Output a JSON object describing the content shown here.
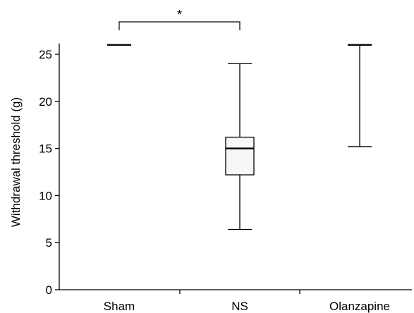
{
  "chart_data": {
    "type": "box",
    "title": "",
    "xlabel": "",
    "ylabel": "Withdrawal threshold (g)",
    "ylim": [
      0,
      26
    ],
    "yticks": [
      0,
      5,
      10,
      15,
      20,
      25
    ],
    "categories": [
      "Sham",
      "NS",
      "Olanzapine"
    ],
    "boxes": [
      {
        "category": "Sham",
        "min": 26,
        "q1": 26,
        "median": 26,
        "q3": 26,
        "max": 26
      },
      {
        "category": "NS",
        "min": 6.4,
        "q1": 12.2,
        "median": 15.0,
        "q3": 16.2,
        "max": 24.0
      },
      {
        "category": "Olanzapine",
        "min": 15.2,
        "q1": 26,
        "median": 26,
        "q3": 26,
        "max": 26
      }
    ],
    "annotations": [
      {
        "type": "significance-bracket",
        "from": "Sham",
        "to": "NS",
        "label": "*"
      }
    ],
    "grid": false,
    "legend": "none"
  },
  "colors": {
    "axis": "#000000",
    "box_fill": "#f7f7f7",
    "box_stroke": "#000000",
    "background": "#ffffff"
  }
}
